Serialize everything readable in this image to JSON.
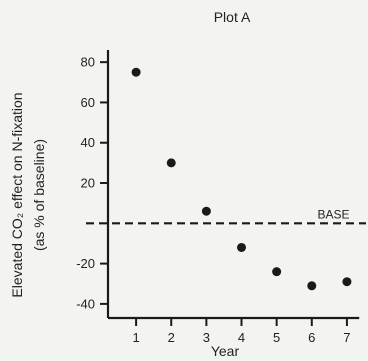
{
  "chart_data": {
    "type": "scatter",
    "title": "Plot A",
    "xlabel": "Year",
    "ylabel_line1": "Elevated CO₂ effect on N-fixation",
    "ylabel_line2": "(as % of baseline)",
    "x": [
      1,
      2,
      3,
      4,
      5,
      6,
      7
    ],
    "y": [
      75,
      30,
      6,
      -12,
      -24,
      -31,
      -29
    ],
    "xlim": [
      0.2,
      7.6
    ],
    "ylim": [
      -47,
      90
    ],
    "xticks": [
      1,
      2,
      3,
      4,
      5,
      6,
      7
    ],
    "yticks": [
      80,
      60,
      40,
      20,
      -20,
      -40
    ],
    "baseline": {
      "value": 0,
      "label": "BASE"
    },
    "grid": false,
    "point_color": "#1a1a1a",
    "axis_color": "#1a1a1a"
  }
}
